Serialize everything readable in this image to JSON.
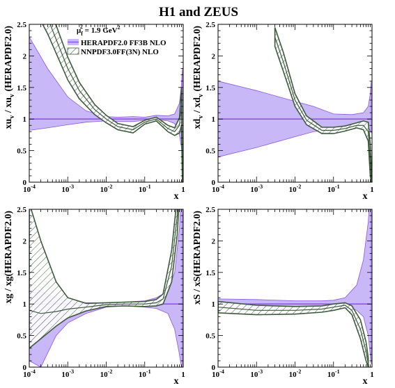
{
  "figure": {
    "title": "H1 and ZEUS"
  },
  "legend": {
    "scale_label": "μ",
    "scale_sub": "f",
    "scale_sup": "2",
    "scale_value": " = 1.9 GeV",
    "scale_unit_sup": "2",
    "entries": [
      "HERAPDF2.0 FF3B NLO",
      "NNPDF3.0FF(3N) NLO"
    ]
  },
  "colors": {
    "hera_fill": "#c9b8f7",
    "hera_line": "#8e55e8",
    "nnpdf_line": "#3d5a3d",
    "axis": "#000000"
  },
  "x_tick_labels": [
    {
      "base": "10",
      "exp": "-4"
    },
    {
      "base": "10",
      "exp": "-3"
    },
    {
      "base": "10",
      "exp": "-2"
    },
    {
      "base": "10",
      "exp": "-1"
    },
    {
      "base": "1",
      "exp": ""
    }
  ],
  "y_tick_labels": [
    "0",
    "0.5",
    "1",
    "1.5",
    "2",
    "2.5"
  ],
  "chart_data": [
    {
      "type": "area",
      "xlabel": "x",
      "ylabel": "xu_v / xu_v (HERAPDF2.0)",
      "ylabel_parts": {
        "a": "xu",
        "a_sub": "v",
        "mid": " / xu",
        "b_sub": "v",
        "end": " (HERAPDF2.0)"
      },
      "xscale": "log",
      "xlim": [
        0.0001,
        1
      ],
      "ylim": [
        0,
        2.5
      ],
      "series": [
        {
          "name": "HERAPDF2.0 FF3B NLO",
          "x": [
            0.0001,
            0.0003,
            0.001,
            0.003,
            0.01,
            0.02,
            0.05,
            0.1,
            0.2,
            0.4,
            0.6,
            0.8,
            0.9,
            0.95
          ],
          "central": [
            1,
            1,
            1,
            1,
            1,
            1,
            1,
            1,
            1,
            1,
            1,
            1,
            1,
            1
          ],
          "lower": [
            0.82,
            0.86,
            0.91,
            0.95,
            0.97,
            0.96,
            0.96,
            0.98,
            0.99,
            0.97,
            0.93,
            0.75,
            0.55,
            0.4
          ],
          "upper": [
            2.3,
            1.8,
            1.35,
            1.13,
            1.04,
            1.03,
            1.04,
            1.03,
            1.06,
            1.05,
            1.08,
            1.25,
            1.55,
            1.8
          ]
        },
        {
          "name": "NNPDF3.0FF(3N) NLO",
          "x": [
            0.0001,
            0.0003,
            0.001,
            0.002,
            0.005,
            0.01,
            0.02,
            0.05,
            0.1,
            0.2,
            0.4,
            0.6,
            0.8,
            0.9,
            0.95
          ],
          "central": [
            3.2,
            2.6,
            1.8,
            1.45,
            1.15,
            1.0,
            0.88,
            0.83,
            0.95,
            1.0,
            0.85,
            0.8,
            0.9,
            1.2,
            0.05
          ],
          "lower": [
            2.9,
            2.35,
            1.62,
            1.32,
            1.07,
            0.94,
            0.83,
            0.78,
            0.92,
            0.97,
            0.8,
            0.74,
            0.78,
            0.9,
            0.0
          ],
          "upper": [
            3.5,
            2.85,
            1.98,
            1.58,
            1.23,
            1.06,
            0.93,
            0.88,
            0.98,
            1.03,
            0.9,
            0.86,
            1.02,
            1.5,
            0.3
          ]
        }
      ]
    },
    {
      "type": "area",
      "xlabel": "x",
      "ylabel": "xd_v / xd_v (HERAPDF2.0)",
      "ylabel_parts": {
        "a": "xd",
        "a_sub": "v",
        "mid": " / xd",
        "b_sub": "v",
        "end": " (HERAPDF2.0)"
      },
      "xscale": "log",
      "xlim": [
        0.0001,
        1
      ],
      "ylim": [
        0,
        2.5
      ],
      "series": [
        {
          "name": "HERAPDF2.0 FF3B NLO",
          "x": [
            0.0001,
            0.001,
            0.01,
            0.03,
            0.1,
            0.3,
            0.6,
            0.8,
            0.9,
            0.95
          ],
          "central": [
            1,
            1,
            1,
            1,
            1,
            1,
            1,
            1,
            1,
            1
          ],
          "lower": [
            0.4,
            0.55,
            0.72,
            0.8,
            0.84,
            0.87,
            0.88,
            0.86,
            0.82,
            0.78
          ],
          "upper": [
            1.6,
            1.45,
            1.28,
            1.2,
            1.08,
            1.07,
            1.1,
            1.2,
            1.4,
            1.6
          ]
        },
        {
          "name": "NNPDF3.0FF(3N) NLO",
          "x": [
            0.003,
            0.005,
            0.01,
            0.02,
            0.05,
            0.1,
            0.2,
            0.4,
            0.6,
            0.8,
            0.9,
            0.95
          ],
          "central": [
            2.3,
            1.9,
            1.3,
            0.98,
            0.82,
            0.82,
            0.85,
            0.9,
            0.9,
            0.8,
            0.3,
            0.05
          ],
          "lower": [
            2.15,
            1.75,
            1.2,
            0.91,
            0.77,
            0.77,
            0.81,
            0.86,
            0.83,
            0.65,
            0.1,
            0.0
          ],
          "upper": [
            2.45,
            2.05,
            1.4,
            1.05,
            0.87,
            0.87,
            0.89,
            0.94,
            0.97,
            0.95,
            0.6,
            0.3
          ]
        }
      ]
    },
    {
      "type": "area",
      "xlabel": "x",
      "ylabel": "xg / xg(HERAPDF2.0)",
      "ylabel_parts": {
        "a": "xg / xg(HERAPDF2.0)"
      },
      "xscale": "log",
      "xlim": [
        0.0001,
        1
      ],
      "ylim": [
        0,
        2.5
      ],
      "series": [
        {
          "name": "HERAPDF2.0 FF3B NLO",
          "x": [
            0.0001,
            0.0002,
            0.0005,
            0.001,
            0.003,
            0.01,
            0.03,
            0.1,
            0.2,
            0.4,
            0.6,
            0.8,
            0.9,
            0.95
          ],
          "central": [
            1,
            1,
            1,
            1,
            1,
            1,
            1,
            1,
            1,
            1,
            1,
            1,
            1,
            1
          ],
          "lower": [
            0.1,
            0.0,
            0.5,
            0.7,
            0.85,
            0.95,
            0.97,
            0.95,
            0.93,
            0.85,
            0.6,
            0.2,
            0.0,
            0.0
          ],
          "upper": [
            1.3,
            1.2,
            1.1,
            1.05,
            1.02,
            1.02,
            1.03,
            1.05,
            1.1,
            1.2,
            1.5,
            2.2,
            2.8,
            3.2
          ]
        },
        {
          "name": "NNPDF3.0FF(3N) NLO",
          "x": [
            0.0001,
            0.0002,
            0.0005,
            0.001,
            0.003,
            0.01,
            0.03,
            0.1,
            0.2,
            0.3,
            0.5,
            0.7,
            0.8
          ],
          "central": [
            0.9,
            0.85,
            0.88,
            0.92,
            0.95,
            0.99,
            1.0,
            1.0,
            1.02,
            1.08,
            1.6,
            2.4,
            3.0
          ],
          "lower": [
            0.3,
            0.45,
            0.65,
            0.78,
            0.89,
            0.96,
            0.97,
            0.96,
            0.97,
            1.0,
            1.35,
            2.1,
            2.7
          ],
          "upper": [
            2.6,
            2.0,
            1.35,
            1.1,
            1.01,
            1.02,
            1.03,
            1.04,
            1.07,
            1.16,
            1.85,
            2.7,
            3.3
          ]
        }
      ]
    },
    {
      "type": "area",
      "xlabel": "x",
      "ylabel": "xS / xS(HERAPDF2.0)",
      "ylabel_parts": {
        "a": "xS / xS(HERAPDF2.0)"
      },
      "xscale": "log",
      "xlim": [
        0.0001,
        1
      ],
      "ylim": [
        0,
        2.5
      ],
      "series": [
        {
          "name": "HERAPDF2.0 FF3B NLO",
          "x": [
            0.0001,
            0.001,
            0.01,
            0.05,
            0.1,
            0.2,
            0.4,
            0.6,
            0.8,
            0.9,
            0.95
          ],
          "central": [
            1,
            1,
            1,
            1,
            1,
            1,
            1,
            1,
            1,
            1,
            1
          ],
          "lower": [
            0.92,
            0.94,
            0.96,
            0.97,
            0.97,
            0.96,
            0.9,
            0.8,
            0.5,
            0.2,
            0.05
          ],
          "upper": [
            1.08,
            1.07,
            1.05,
            1.05,
            1.06,
            1.1,
            1.3,
            1.7,
            2.3,
            2.8,
            3.1
          ]
        },
        {
          "name": "NNPDF3.0FF(3N) NLO",
          "x": [
            0.0001,
            0.001,
            0.01,
            0.05,
            0.1,
            0.2,
            0.3,
            0.5,
            0.7,
            0.8
          ],
          "central": [
            0.95,
            0.9,
            0.9,
            0.92,
            0.95,
            0.98,
            0.9,
            0.6,
            0.25,
            0.05
          ],
          "lower": [
            0.86,
            0.83,
            0.84,
            0.87,
            0.9,
            0.94,
            0.83,
            0.45,
            0.1,
            0.0
          ],
          "upper": [
            1.04,
            0.98,
            0.96,
            0.97,
            1.0,
            1.02,
            0.97,
            0.75,
            0.4,
            0.15
          ]
        }
      ]
    }
  ]
}
